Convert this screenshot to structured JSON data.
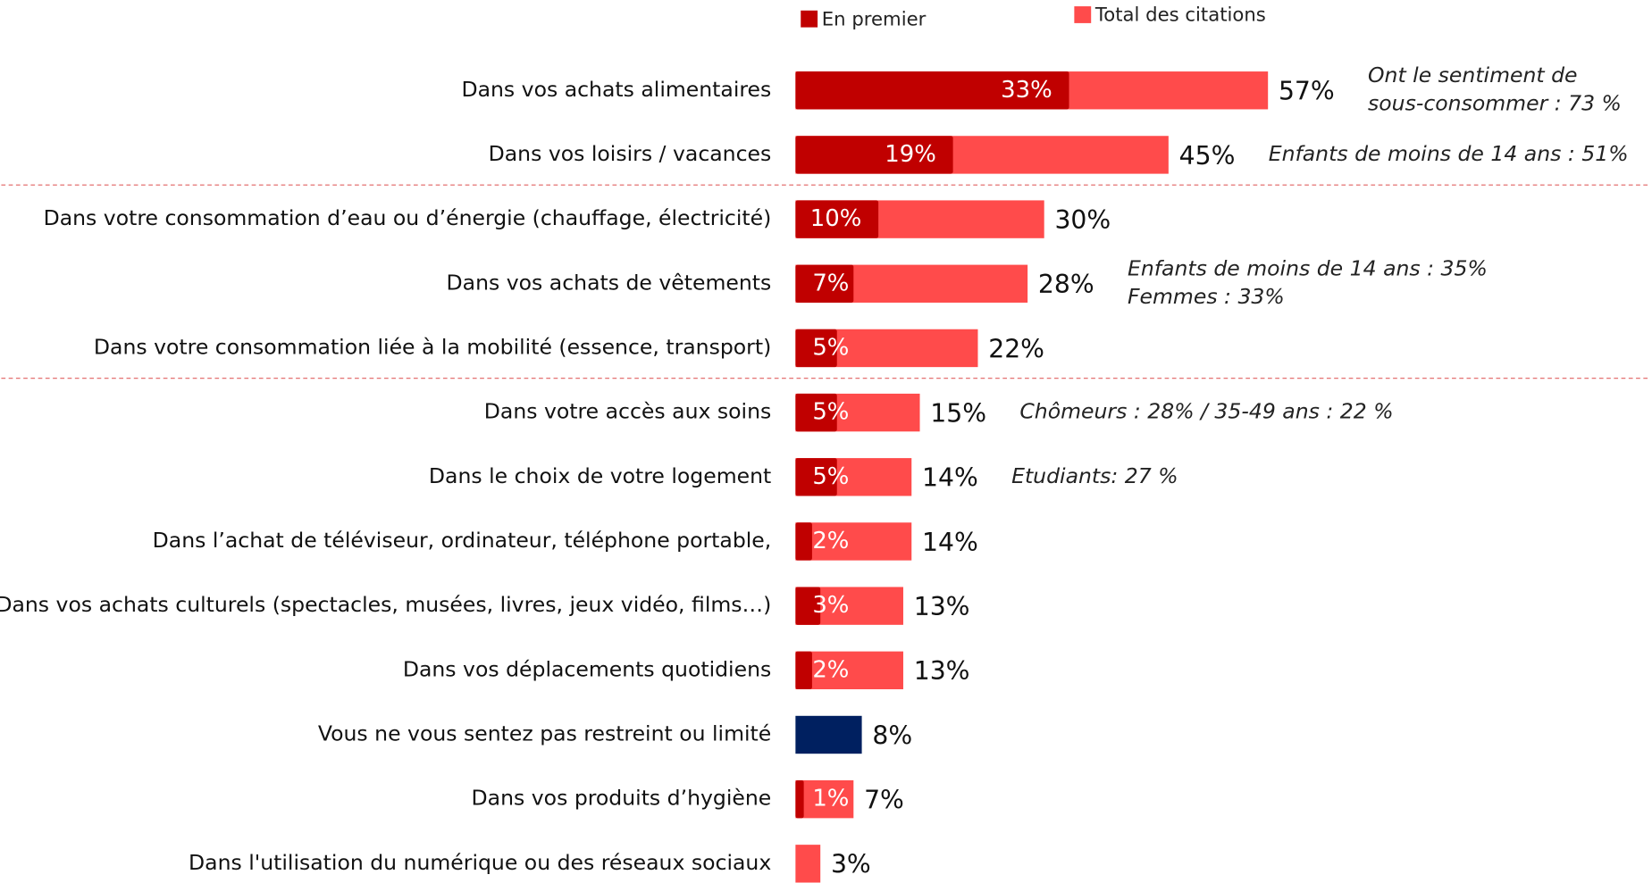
{
  "chart_data": {
    "type": "bar",
    "orientation": "horizontal",
    "categories": [
      "Dans vos achats alimentaires",
      "Dans vos loisirs / vacances",
      "Dans votre consommation d’eau ou d’énergie (chauffage, électricité)",
      "Dans vos achats de vêtements",
      "Dans votre consommation liée à la mobilité (essence, transport)",
      "Dans votre accès aux soins",
      "Dans le choix de votre logement",
      "Dans l’achat de téléviseur, ordinateur, téléphone portable,",
      "Dans vos achats culturels (spectacles, musées, livres, jeux vidéo, films…)",
      "Dans vos déplacements quotidiens",
      "Vous ne vous sentez pas restreint ou limité",
      "Dans vos produits d’hygiène",
      "Dans l'utilisation du numérique ou des réseaux sociaux"
    ],
    "series": [
      {
        "name": "En premier",
        "color": "#c00000",
        "values": [
          33,
          19,
          10,
          7,
          5,
          5,
          5,
          2,
          3,
          2,
          null,
          1,
          null
        ],
        "value_labels": [
          "33%",
          "19%",
          "10%",
          "7%",
          "5%",
          "5%",
          "5%",
          "2%",
          "3%",
          "2%",
          null,
          "1%",
          null
        ]
      },
      {
        "name": "Total des citations",
        "color": "#ff4b4b",
        "colors": [
          "#ff4b4b",
          "#ff4b4b",
          "#ff4b4b",
          "#ff4b4b",
          "#ff4b4b",
          "#ff4b4b",
          "#ff4b4b",
          "#ff4b4b",
          "#ff4b4b",
          "#ff4b4b",
          "#002060",
          "#ff4b4b",
          "#ff4b4b"
        ],
        "values": [
          57,
          45,
          30,
          28,
          22,
          15,
          14,
          14,
          13,
          13,
          8,
          7,
          3
        ],
        "value_labels": [
          "57%",
          "45%",
          "30%",
          "28%",
          "22%",
          "15%",
          "14%",
          "14%",
          "13%",
          "13%",
          "8%",
          "7%",
          "3%"
        ]
      }
    ],
    "annotations": [
      [
        "Ont le sentiment de",
        "sous-consommer : 73 %"
      ],
      [
        "Enfants de moins de 14 ans : 51%"
      ],
      null,
      [
        "Enfants de moins de 14 ans : 35%",
        "Femmes : 33%"
      ],
      null,
      [
        "Chômeurs : 28% / 35-49 ans : 22 %"
      ],
      [
        "Etudiants: 27 %"
      ],
      null,
      null,
      null,
      null,
      null,
      null
    ]
  }
}
